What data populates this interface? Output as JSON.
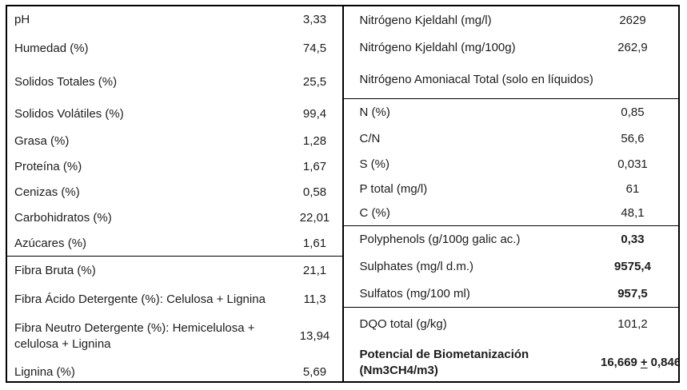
{
  "colors": {
    "background": "#ffffff",
    "border": "#000000",
    "text": "#1c1c1c"
  },
  "table": {
    "left": {
      "groups": [
        {
          "rows": [
            {
              "label": "pH",
              "value": "3,33"
            },
            {
              "label": "Humedad (%)",
              "value": "74,5"
            },
            {
              "label": "Solidos Totales (%)",
              "value": "25,5"
            },
            {
              "label": "Solidos Volátiles (%)",
              "value": "99,4"
            },
            {
              "label": "Grasa (%)",
              "value": "1,28"
            },
            {
              "label": "Proteína (%)",
              "value": "1,67"
            },
            {
              "label": "Cenizas (%)",
              "value": "0,58"
            },
            {
              "label": "Carbohidratos (%)",
              "value": "22,01"
            },
            {
              "label": "Azúcares (%)",
              "value": "1,61"
            }
          ]
        },
        {
          "rows": [
            {
              "label": "Fibra Bruta (%)",
              "value": "21,1"
            },
            {
              "label": "Fibra Ácido Detergente (%): Celulosa + Lignina",
              "value": "11,3"
            },
            {
              "label": "Fibra Neutro Detergente (%): Hemicelulosa + celulosa + Lignina",
              "value": "13,94"
            },
            {
              "label": "Lignina (%)",
              "value": "5,69"
            }
          ]
        }
      ]
    },
    "right": {
      "groups": [
        {
          "rows": [
            {
              "label": "Nitrógeno Kjeldahl (mg/l)",
              "value": "2629"
            },
            {
              "label": "Nitrógeno Kjeldahl (mg/100g)",
              "value": "262,9"
            },
            {
              "label": "Nitrógeno Amoniacal Total (solo en líquidos)",
              "value": ""
            }
          ]
        },
        {
          "rows": [
            {
              "label": "N (%)",
              "value": "0,85"
            },
            {
              "label": "C/N",
              "value": "56,6"
            },
            {
              "label": "S (%)",
              "value": "0,031"
            },
            {
              "label": "P total (mg/l)",
              "value": "61"
            },
            {
              "label": "C (%)",
              "value": "48,1"
            }
          ]
        },
        {
          "rows": [
            {
              "label": "Polyphenols (g/100g galic ac.)",
              "value": "0,33",
              "bold_value": true
            },
            {
              "label": "Sulphates (mg/l d.m.)",
              "value": "9575,4",
              "bold_value": true
            },
            {
              "label": "Sulfatos (mg/100 ml)",
              "value": "957,5",
              "bold_value": true
            }
          ]
        },
        {
          "rows": [
            {
              "label": "DQO total (g/kg)",
              "value": "101,2"
            },
            {
              "label": "Potencial de Biometanización (Nm3CH4/m3)",
              "bold_label": true,
              "bold_value": true,
              "value_pm": {
                "pre": "16,669",
                "plus": "+",
                "post": "0,846"
              }
            }
          ]
        }
      ]
    }
  }
}
